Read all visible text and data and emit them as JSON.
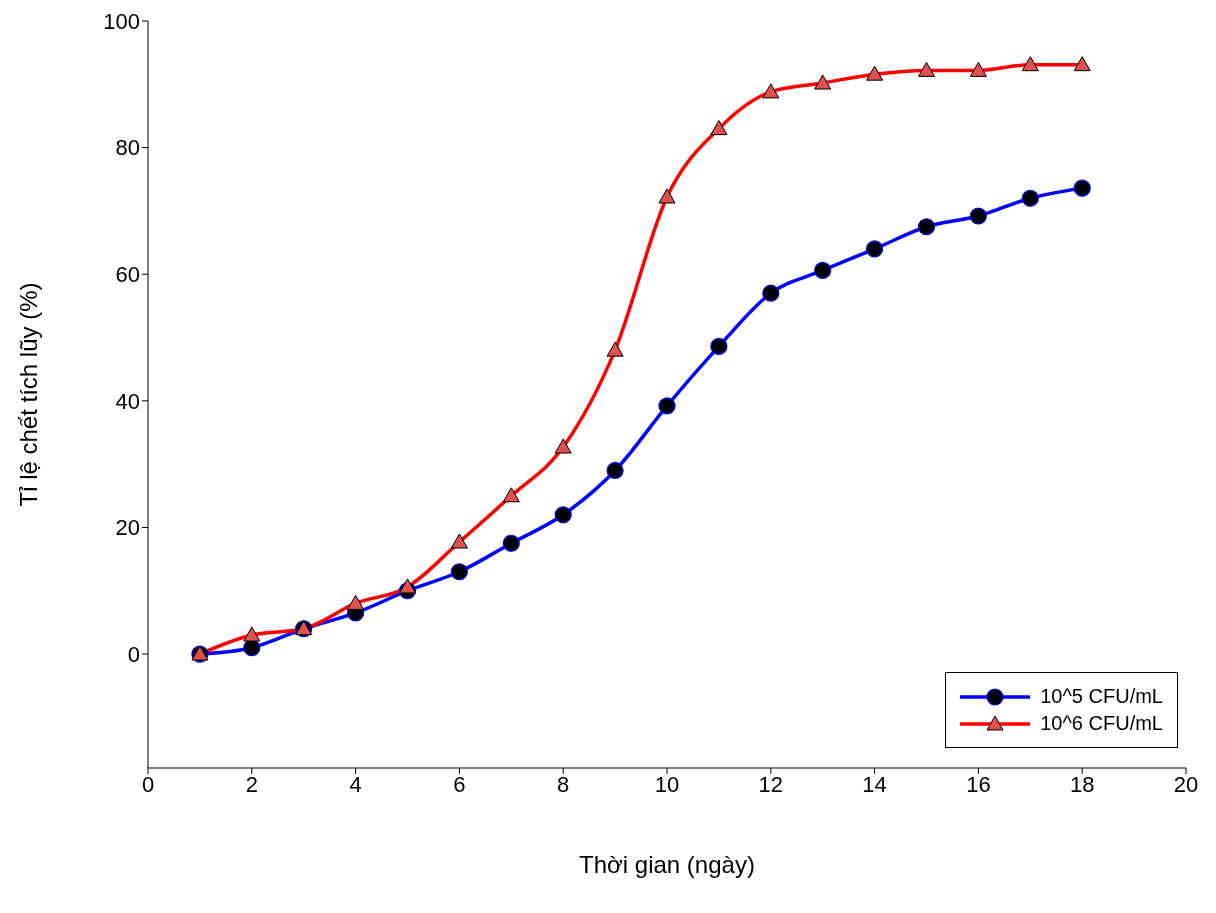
{
  "chart_data": {
    "type": "line",
    "xlabel": "Thời gian (ngày)",
    "ylabel": "Tỉ lệ chết tích lũy (%)",
    "x": [
      1,
      2,
      3,
      4,
      5,
      6,
      7,
      8,
      9,
      10,
      11,
      12,
      13,
      14,
      15,
      16,
      17,
      18
    ],
    "series": [
      {
        "name": "10^5 CFU/mL",
        "color": "#0000ff",
        "marker": "circle",
        "values": [
          0,
          1,
          4,
          6.5,
          10,
          13,
          17.5,
          22,
          29,
          39.2,
          48.6,
          57,
          60.6,
          64,
          67.5,
          69.2,
          72,
          73.6
        ]
      },
      {
        "name": "10^6 CFU/mL",
        "color": "#ff0000",
        "marker": "triangle",
        "values": [
          0,
          3,
          4,
          8,
          10.6,
          17.7,
          25,
          32.7,
          48,
          72.2,
          83,
          88.8,
          90.2,
          91.6,
          92.2,
          92.2,
          93.1,
          93.1
        ]
      }
    ],
    "xlim": [
      0,
      20
    ],
    "xticks": [
      0,
      2,
      4,
      6,
      8,
      10,
      12,
      14,
      16,
      18,
      20
    ],
    "ylim": [
      -18,
      100
    ],
    "yticks": [
      0,
      20,
      40,
      60,
      80,
      100
    ],
    "grid": false,
    "legend": "bottom right",
    "line_style": "solid"
  }
}
